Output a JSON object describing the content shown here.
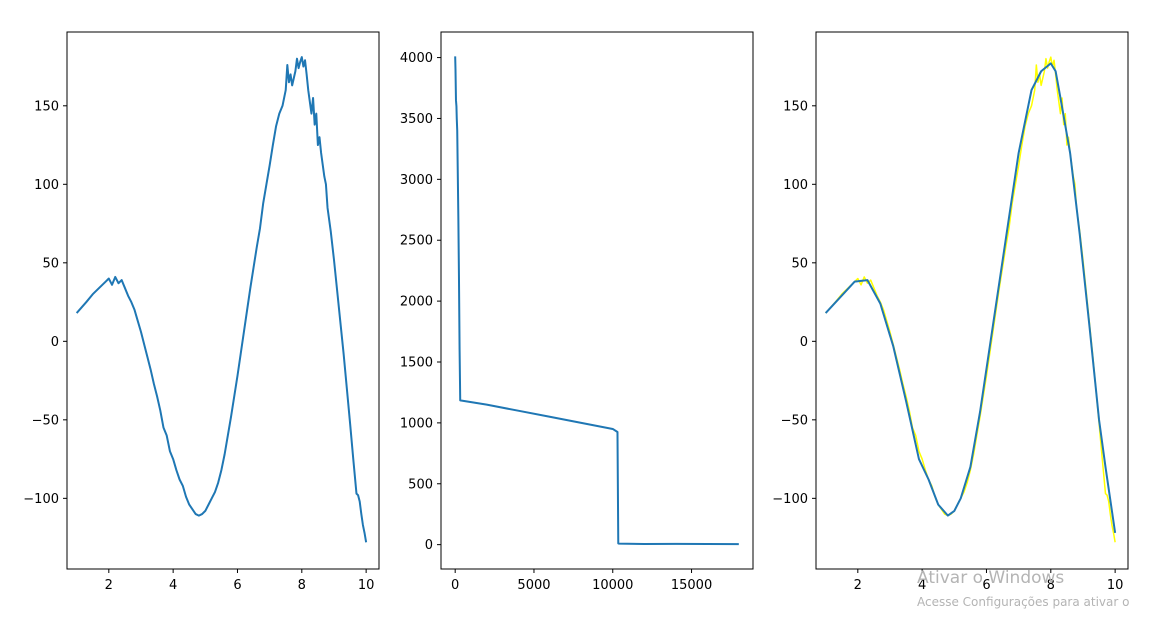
{
  "chart_data": [
    {
      "type": "line",
      "xlim": [
        0.7,
        10.4
      ],
      "ylim": [
        -145,
        197
      ],
      "xticks": [
        2,
        4,
        6,
        8,
        10
      ],
      "yticks": [
        -100,
        -50,
        0,
        50,
        100,
        150
      ],
      "xtick_labels": [
        "2",
        "4",
        "6",
        "8",
        "10"
      ],
      "ytick_labels": [
        "−100",
        "−50",
        "0",
        "50",
        "100",
        "150"
      ],
      "grid": false,
      "series": [
        {
          "color": "#1f77b4",
          "x": [
            1.0,
            1.3,
            1.5,
            1.7,
            1.9,
            2.0,
            2.1,
            2.2,
            2.3,
            2.4,
            2.5,
            2.6,
            2.7,
            2.8,
            2.9,
            3.0,
            3.1,
            3.2,
            3.3,
            3.4,
            3.5,
            3.6,
            3.7,
            3.8,
            3.9,
            4.0,
            4.1,
            4.2,
            4.3,
            4.4,
            4.5,
            4.6,
            4.7,
            4.8,
            4.9,
            5.0,
            5.1,
            5.2,
            5.3,
            5.4,
            5.5,
            5.6,
            5.7,
            5.8,
            5.9,
            6.0,
            6.1,
            6.2,
            6.3,
            6.4,
            6.5,
            6.6,
            6.7,
            6.8,
            6.9,
            7.0,
            7.1,
            7.2,
            7.3,
            7.4,
            7.5,
            7.55,
            7.6,
            7.65,
            7.7,
            7.8,
            7.85,
            7.9,
            7.95,
            8.0,
            8.05,
            8.1,
            8.15,
            8.2,
            8.3,
            8.35,
            8.4,
            8.45,
            8.5,
            8.55,
            8.6,
            8.7,
            8.75,
            8.8,
            8.9,
            9.0,
            9.1,
            9.2,
            9.3,
            9.4,
            9.5,
            9.6,
            9.7,
            9.75,
            9.8,
            9.85,
            9.9,
            9.95,
            10.0
          ],
          "y": [
            18,
            25,
            30,
            34,
            38,
            40,
            36,
            41,
            37,
            39,
            34,
            29,
            25,
            20,
            13,
            6,
            -2,
            -10,
            -18,
            -27,
            -35,
            -44,
            -55,
            -60,
            -70,
            -75,
            -82,
            -88,
            -92,
            -99,
            -104,
            -107,
            -110,
            -111,
            -110,
            -108,
            -104,
            -100,
            -96,
            -90,
            -82,
            -72,
            -60,
            -48,
            -35,
            -22,
            -8,
            6,
            20,
            34,
            47,
            60,
            72,
            88,
            100,
            112,
            125,
            137,
            145,
            150,
            160,
            176,
            165,
            170,
            163,
            172,
            180,
            174,
            178,
            181,
            175,
            179,
            170,
            160,
            145,
            155,
            138,
            145,
            125,
            130,
            120,
            105,
            100,
            85,
            70,
            52,
            32,
            12,
            -8,
            -30,
            -52,
            -75,
            -97,
            -98,
            -102,
            -110,
            -117,
            -122,
            -128
          ]
        }
      ]
    },
    {
      "type": "line",
      "xlim": [
        -900,
        18900
      ],
      "ylim": [
        -200,
        4210
      ],
      "xticks": [
        0,
        5000,
        10000,
        15000
      ],
      "yticks": [
        0,
        500,
        1000,
        1500,
        2000,
        2500,
        3000,
        3500,
        4000
      ],
      "xtick_labels": [
        "0",
        "5000",
        "10000",
        "15000"
      ],
      "ytick_labels": [
        "0",
        "500",
        "1000",
        "1500",
        "2000",
        "2500",
        "3000",
        "3500",
        "4000"
      ],
      "grid": false,
      "series": [
        {
          "color": "#1f77b4",
          "x": [
            0,
            20,
            50,
            80,
            100,
            130,
            160,
            200,
            240,
            280,
            320,
            2000,
            4000,
            6000,
            8000,
            10000,
            10300,
            10350,
            10400,
            12000,
            14000,
            16000,
            18000
          ],
          "y": [
            4010,
            3900,
            3650,
            3600,
            3500,
            3400,
            3100,
            2700,
            2200,
            1600,
            1185,
            1150,
            1100,
            1050,
            1000,
            950,
            925,
            10,
            8,
            5,
            6,
            5,
            4
          ]
        }
      ]
    },
    {
      "type": "line",
      "xlim": [
        0.7,
        10.4
      ],
      "ylim": [
        -145,
        197
      ],
      "xticks": [
        2,
        4,
        6,
        8,
        10
      ],
      "yticks": [
        -100,
        -50,
        0,
        50,
        100,
        150
      ],
      "xtick_labels": [
        "2",
        "4",
        "6",
        "8",
        "10"
      ],
      "ytick_labels": [
        "−100",
        "−50",
        "0",
        "50",
        "100",
        "150"
      ],
      "grid": false,
      "series": [
        {
          "color": "#ffff00",
          "x": [
            1.0,
            1.3,
            1.5,
            1.7,
            1.9,
            2.0,
            2.1,
            2.2,
            2.3,
            2.4,
            2.5,
            2.6,
            2.7,
            2.8,
            2.9,
            3.0,
            3.1,
            3.2,
            3.3,
            3.4,
            3.5,
            3.6,
            3.7,
            3.8,
            3.9,
            4.0,
            4.1,
            4.2,
            4.3,
            4.4,
            4.5,
            4.6,
            4.7,
            4.8,
            4.9,
            5.0,
            5.1,
            5.2,
            5.3,
            5.4,
            5.5,
            5.6,
            5.7,
            5.8,
            5.9,
            6.0,
            6.1,
            6.2,
            6.3,
            6.4,
            6.5,
            6.6,
            6.7,
            6.8,
            6.9,
            7.0,
            7.1,
            7.2,
            7.3,
            7.4,
            7.5,
            7.55,
            7.6,
            7.65,
            7.7,
            7.8,
            7.85,
            7.9,
            7.95,
            8.0,
            8.05,
            8.1,
            8.15,
            8.2,
            8.3,
            8.35,
            8.4,
            8.45,
            8.5,
            8.55,
            8.6,
            8.7,
            8.75,
            8.8,
            8.9,
            9.0,
            9.1,
            9.2,
            9.3,
            9.4,
            9.5,
            9.6,
            9.7,
            9.75,
            9.8,
            9.85,
            9.9,
            9.95,
            10.0
          ],
          "y": [
            18,
            25,
            30,
            34,
            38,
            40,
            36,
            41,
            37,
            39,
            34,
            29,
            25,
            20,
            13,
            6,
            -2,
            -10,
            -18,
            -27,
            -35,
            -44,
            -55,
            -60,
            -70,
            -75,
            -82,
            -88,
            -92,
            -99,
            -104,
            -107,
            -110,
            -111,
            -110,
            -108,
            -104,
            -100,
            -96,
            -90,
            -82,
            -72,
            -60,
            -48,
            -35,
            -22,
            -8,
            6,
            20,
            34,
            47,
            60,
            72,
            88,
            100,
            112,
            125,
            137,
            145,
            150,
            160,
            176,
            165,
            170,
            163,
            172,
            180,
            174,
            178,
            181,
            175,
            179,
            170,
            160,
            145,
            155,
            138,
            145,
            125,
            130,
            120,
            105,
            100,
            85,
            70,
            52,
            32,
            12,
            -8,
            -30,
            -52,
            -75,
            -97,
            -98,
            -102,
            -110,
            -117,
            -122,
            -128
          ]
        },
        {
          "color": "#1f77b4",
          "x": [
            1.0,
            1.9,
            2.3,
            2.7,
            3.1,
            3.5,
            3.9,
            4.2,
            4.5,
            4.8,
            5.0,
            5.2,
            5.5,
            5.8,
            6.2,
            6.6,
            7.0,
            7.4,
            7.7,
            8.0,
            8.15,
            8.3,
            8.6,
            8.9,
            9.2,
            9.5,
            9.7,
            10.0
          ],
          "y": [
            18,
            38,
            39,
            24,
            -3,
            -38,
            -75,
            -88,
            -104,
            -111,
            -108,
            -100,
            -80,
            -45,
            10,
            65,
            120,
            160,
            172,
            177,
            172,
            155,
            120,
            68,
            10,
            -50,
            -80,
            -122
          ]
        }
      ]
    }
  ],
  "watermark": {
    "title": "Ativar o Windows",
    "subtitle": "Acesse Configurações para ativar o"
  }
}
